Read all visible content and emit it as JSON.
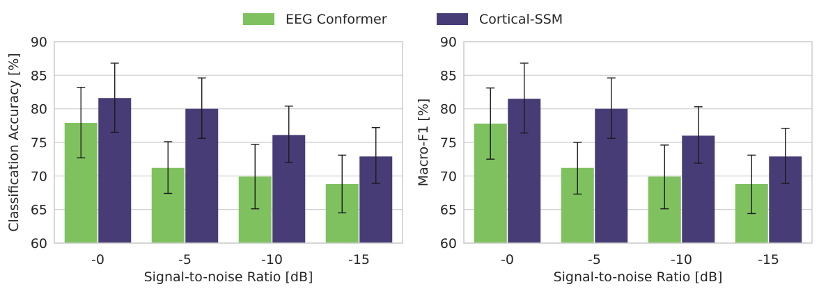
{
  "legend": {
    "placement": "top-center",
    "entries": [
      {
        "name": "EEG Conformer",
        "color": "#7fc15f"
      },
      {
        "name": "Cortical-SSM",
        "color": "#483c76"
      }
    ]
  },
  "chart_data": [
    {
      "type": "bar",
      "title": "",
      "xlabel": "Signal-to-noise Ratio [dB]",
      "ylabel": "Classification Accuracy [%]",
      "ylim": [
        60,
        90
      ],
      "yticks": [
        60,
        65,
        70,
        75,
        80,
        85,
        90
      ],
      "grid": true,
      "categories": [
        "-0",
        "-5",
        "-10",
        "-15"
      ],
      "series": [
        {
          "name": "EEG Conformer",
          "color": "#7fc15f",
          "values": [
            77.9,
            71.2,
            69.9,
            68.8
          ],
          "err_low": [
            72.7,
            67.4,
            65.1,
            64.5
          ],
          "err_high": [
            83.2,
            75.1,
            74.7,
            73.1
          ]
        },
        {
          "name": "Cortical-SSM",
          "color": "#483c76",
          "values": [
            81.6,
            80.0,
            76.1,
            72.9
          ],
          "err_low": [
            76.5,
            75.6,
            72.0,
            68.9
          ],
          "err_high": [
            86.8,
            84.6,
            80.4,
            77.2
          ]
        }
      ]
    },
    {
      "type": "bar",
      "title": "",
      "xlabel": "Signal-to-noise Ratio [dB]",
      "ylabel": "Macro-F1 [%]",
      "ylim": [
        60,
        90
      ],
      "yticks": [
        60,
        65,
        70,
        75,
        80,
        85,
        90
      ],
      "grid": true,
      "categories": [
        "-0",
        "-5",
        "-10",
        "-15"
      ],
      "series": [
        {
          "name": "EEG Conformer",
          "color": "#7fc15f",
          "values": [
            77.8,
            71.2,
            69.9,
            68.8
          ],
          "err_low": [
            72.5,
            67.3,
            65.1,
            64.4
          ],
          "err_high": [
            83.1,
            75.0,
            74.6,
            73.1
          ]
        },
        {
          "name": "Cortical-SSM",
          "color": "#483c76",
          "values": [
            81.5,
            80.0,
            76.0,
            72.9
          ],
          "err_low": [
            76.4,
            75.6,
            71.9,
            68.9
          ],
          "err_high": [
            86.8,
            84.6,
            80.3,
            77.1
          ]
        }
      ]
    }
  ]
}
